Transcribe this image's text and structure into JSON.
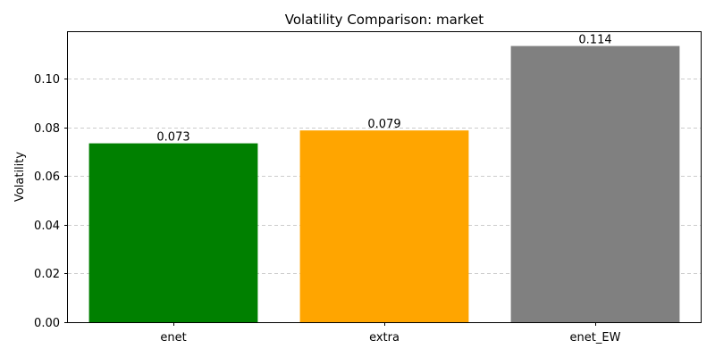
{
  "chart_data": {
    "type": "bar",
    "title": "Volatility Comparison: market",
    "xlabel": "",
    "ylabel": "Volatility",
    "categories": [
      "enet",
      "extra",
      "enet_EW"
    ],
    "values": [
      0.0735,
      0.0788,
      0.1135
    ],
    "value_labels": [
      "0.073",
      "0.079",
      "0.114"
    ],
    "colors": [
      "#008000",
      "#FFA500",
      "#808080"
    ],
    "ylim": [
      0,
      0.1192
    ],
    "yticks": [
      0.0,
      0.02,
      0.04,
      0.06,
      0.08,
      0.1
    ],
    "ytick_labels": [
      "0.00",
      "0.02",
      "0.04",
      "0.06",
      "0.08",
      "0.10"
    ],
    "grid": "y-dashed",
    "legend": "none"
  }
}
